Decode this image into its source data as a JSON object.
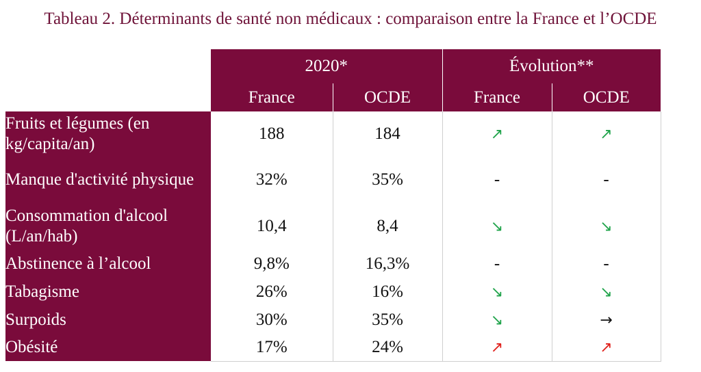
{
  "title": "Tableau 2. Déterminants de santé non médicaux : comparaison entre la France et l’OCDE",
  "colors": {
    "header_bg": "#7a0b3b",
    "title": "#6e1238",
    "up_green": "#1fa34a",
    "down_green": "#1fa34a",
    "up_red": "#e0201b",
    "flat": "#111111"
  },
  "headers": {
    "group1": "2020*",
    "group2": "Évolution**",
    "sub": [
      "France",
      "OCDE",
      "France",
      "OCDE"
    ]
  },
  "rows": [
    {
      "label": "Fruits et légumes (en kg/capita/an)",
      "france": "188",
      "ocde": "184",
      "evo_france": "↗",
      "evo_france_color": "#1fa34a",
      "evo_ocde": "↗",
      "evo_ocde_color": "#1fa34a"
    },
    {
      "label": "Manque d'activité physique",
      "france": "32%",
      "ocde": "35%",
      "evo_france": "-",
      "evo_france_color": "#111111",
      "evo_ocde": "-",
      "evo_ocde_color": "#111111"
    },
    {
      "label": "Consommation d'alcool (L/an/hab)",
      "france": "10,4",
      "ocde": "8,4",
      "evo_france": "↘",
      "evo_france_color": "#1fa34a",
      "evo_ocde": "↘",
      "evo_ocde_color": "#1fa34a"
    },
    {
      "label": "Abstinence à l’alcool",
      "france": "9,8%",
      "ocde": "16,3%",
      "evo_france": "-",
      "evo_france_color": "#111111",
      "evo_ocde": "-",
      "evo_ocde_color": "#111111"
    },
    {
      "label": "Tabagisme",
      "france": "26%",
      "ocde": "16%",
      "evo_france": "↘",
      "evo_france_color": "#1fa34a",
      "evo_ocde": "↘",
      "evo_ocde_color": "#1fa34a"
    },
    {
      "label": "Surpoids",
      "france": "30%",
      "ocde": "35%",
      "evo_france": "↘",
      "evo_france_color": "#1fa34a",
      "evo_ocde": "→",
      "evo_ocde_color": "#111111"
    },
    {
      "label": "Obésité",
      "france": "17%",
      "ocde": "24%",
      "evo_france": "↗",
      "evo_france_color": "#e0201b",
      "evo_ocde": "↗",
      "evo_ocde_color": "#e0201b"
    }
  ]
}
